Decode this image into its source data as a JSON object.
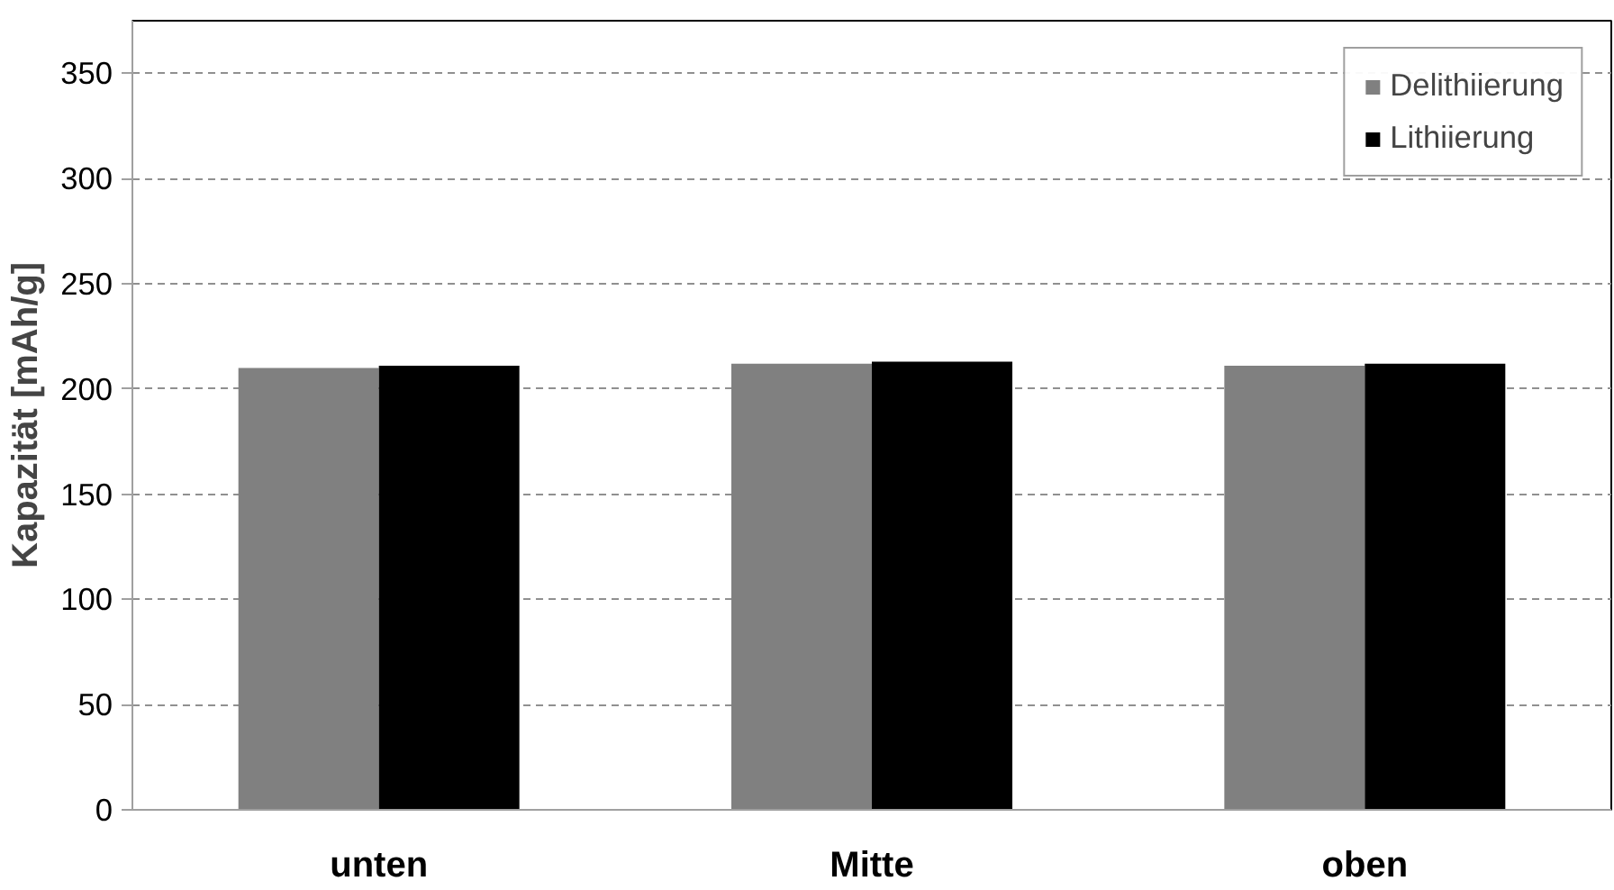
{
  "chart_data": {
    "type": "bar",
    "ylabel": "Kapazität [mAh/g]",
    "categories": [
      "unten",
      "Mitte",
      "oben"
    ],
    "series": [
      {
        "name": "Delithiierung",
        "color": "#808080",
        "values": [
          210,
          212,
          211
        ]
      },
      {
        "name": "Lithiierung",
        "color": "#000000",
        "values": [
          211,
          213,
          212
        ]
      }
    ],
    "ylim": [
      0,
      375
    ],
    "yticks": [
      0,
      50,
      100,
      150,
      200,
      250,
      300,
      350
    ],
    "grid": "y",
    "legend": "top right"
  }
}
